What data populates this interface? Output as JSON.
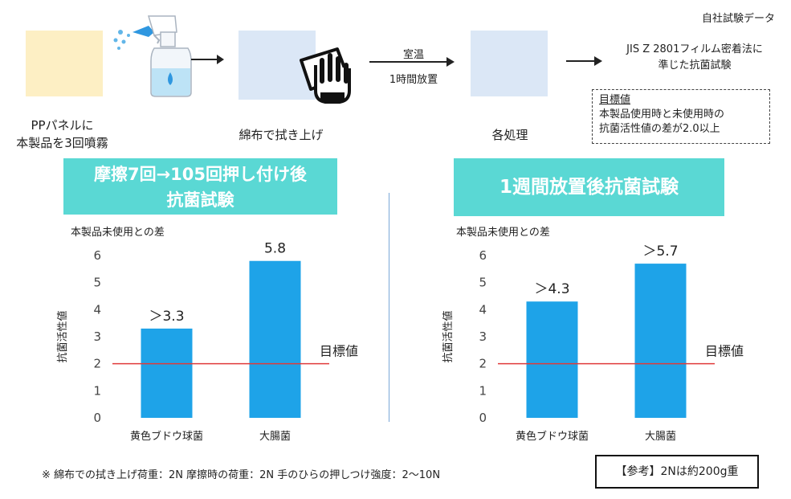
{
  "header": {
    "source_label": "自社試験データ"
  },
  "flow": {
    "step1_label_line1": "PPパネルに",
    "step1_label_line2": "本製品を3回噴霧",
    "step2_label": "綿布で拭き上げ",
    "arrow_label_line1": "室温",
    "arrow_label_line2": "1時間放置",
    "step3_label": "各処理",
    "method_line1": "JIS Z 2801フィルム密着法に",
    "method_line2": "準じた抗菌試験",
    "goal_title": "目標値",
    "goal_line1": "本製品使用時と未使用時の",
    "goal_line2": "抗菌活性値の差が2.0以上"
  },
  "colors": {
    "panel_yellow": "#fdefc4",
    "panel_blue": "#dbe7f6",
    "banner": "#5ad8d4",
    "bar": "#1ea3e8",
    "target_line": "#e03a3a",
    "divider": "#7aa7d8"
  },
  "footer": {
    "note": "※ 綿布での拭き上げ荷重：2N 摩擦時の荷重：2N 手のひらの押しつけ強度：2〜10N",
    "reference": "【参考】2Nは約200g重"
  },
  "chart_data": [
    {
      "type": "bar",
      "title_line1": "摩擦7回→105回押し付け後",
      "title_line2": "抗菌試験",
      "subtitle": "本製品未使用との差",
      "ylabel": "抗菌活性値",
      "categories": [
        "黄色ブドウ球菌",
        "大腸菌"
      ],
      "values": [
        3.3,
        5.8
      ],
      "data_labels": [
        "＞3.3",
        "5.8"
      ],
      "ylim": [
        0,
        6
      ],
      "yticks": [
        "0",
        "1",
        "2",
        "3",
        "4",
        "5",
        "6"
      ],
      "target_value": 2,
      "target_label": "目標値",
      "grid": false
    },
    {
      "type": "bar",
      "title_line1": "1週間放置後抗菌試験",
      "subtitle": "本製品未使用との差",
      "ylabel": "抗菌活性値",
      "categories": [
        "黄色ブドウ球菌",
        "大腸菌"
      ],
      "values": [
        4.3,
        5.7
      ],
      "data_labels": [
        "＞4.3",
        "＞5.7"
      ],
      "ylim": [
        0,
        6
      ],
      "yticks": [
        "0",
        "1",
        "2",
        "3",
        "4",
        "5",
        "6"
      ],
      "target_value": 2,
      "target_label": "目標値",
      "grid": false
    }
  ]
}
